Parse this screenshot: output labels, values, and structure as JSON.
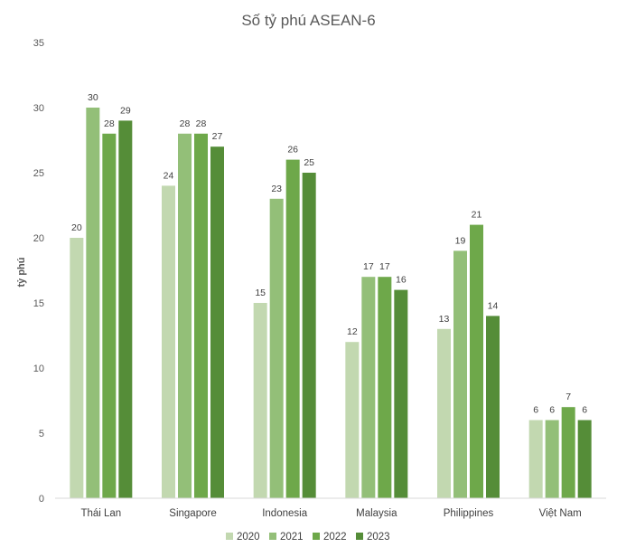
{
  "chart_data": {
    "type": "bar",
    "title": "Số tỷ phú ASEAN-6",
    "xlabel": "",
    "ylabel": "tỷ phú",
    "ylim": [
      0,
      35
    ],
    "yticks": [
      0,
      5,
      10,
      15,
      20,
      25,
      30,
      35
    ],
    "grid": false,
    "legend_position": "bottom",
    "data_labels": true,
    "categories": [
      "Thái Lan",
      "Singapore",
      "Indonesia",
      "Malaysia",
      "Philippines",
      "Việt Nam"
    ],
    "series": [
      {
        "name": "2020",
        "color": "#c2d8b0",
        "values": [
          20,
          24,
          15,
          12,
          13,
          6
        ]
      },
      {
        "name": "2021",
        "color": "#93bf78",
        "values": [
          30,
          28,
          23,
          17,
          19,
          6
        ]
      },
      {
        "name": "2022",
        "color": "#6ea84a",
        "values": [
          28,
          28,
          26,
          17,
          21,
          7
        ]
      },
      {
        "name": "2023",
        "color": "#558d38",
        "values": [
          29,
          27,
          25,
          16,
          14,
          6
        ]
      }
    ]
  }
}
